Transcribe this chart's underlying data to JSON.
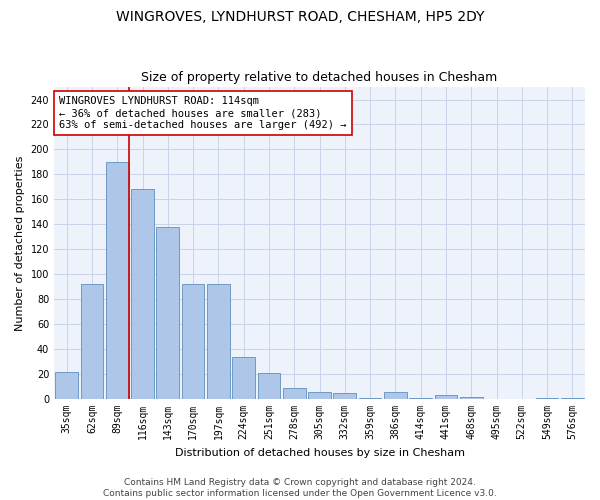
{
  "title": "WINGROVES, LYNDHURST ROAD, CHESHAM, HP5 2DY",
  "subtitle": "Size of property relative to detached houses in Chesham",
  "xlabel": "Distribution of detached houses by size in Chesham",
  "ylabel": "Number of detached properties",
  "categories": [
    "35sqm",
    "62sqm",
    "89sqm",
    "116sqm",
    "143sqm",
    "170sqm",
    "197sqm",
    "224sqm",
    "251sqm",
    "278sqm",
    "305sqm",
    "332sqm",
    "359sqm",
    "386sqm",
    "414sqm",
    "441sqm",
    "468sqm",
    "495sqm",
    "522sqm",
    "549sqm",
    "576sqm"
  ],
  "values": [
    22,
    92,
    190,
    168,
    138,
    92,
    92,
    34,
    21,
    9,
    6,
    5,
    1,
    6,
    1,
    3,
    2,
    0,
    0,
    1,
    1
  ],
  "bar_color": "#aec6e8",
  "bar_edge_color": "#6090c0",
  "highlight_index": 2,
  "highlight_line_color": "#cc0000",
  "annotation_box_text": "WINGROVES LYNDHURST ROAD: 114sqm\n← 36% of detached houses are smaller (283)\n63% of semi-detached houses are larger (492) →",
  "annotation_box_edge_color": "#cc0000",
  "ylim": [
    0,
    250
  ],
  "yticks": [
    0,
    20,
    40,
    60,
    80,
    100,
    120,
    140,
    160,
    180,
    200,
    220,
    240
  ],
  "grid_color": "#c8d4e8",
  "bg_color": "#eef2fa",
  "footer_line1": "Contains HM Land Registry data © Crown copyright and database right 2024.",
  "footer_line2": "Contains public sector information licensed under the Open Government Licence v3.0.",
  "title_fontsize": 10,
  "subtitle_fontsize": 9,
  "annotation_fontsize": 7.5,
  "axis_label_fontsize": 8,
  "tick_fontsize": 7,
  "footer_fontsize": 6.5
}
